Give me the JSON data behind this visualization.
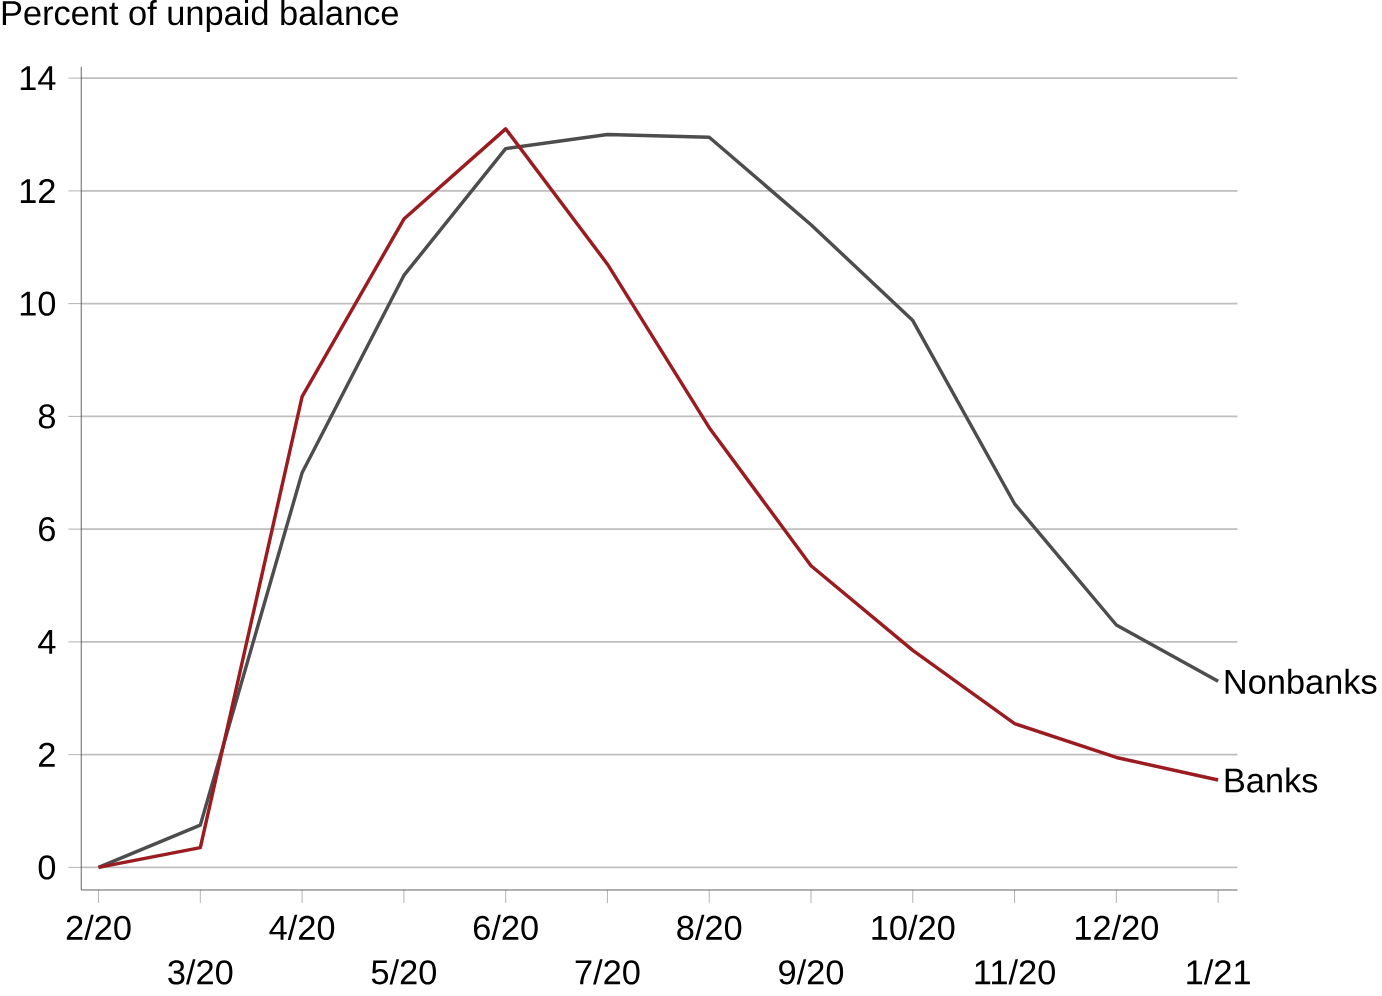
{
  "chart_data": {
    "type": "line",
    "ylabel": "Percent of unpaid balance",
    "categories": [
      "2/20",
      "3/20",
      "4/20",
      "5/20",
      "6/20",
      "7/20",
      "8/20",
      "9/20",
      "10/20",
      "11/20",
      "12/20",
      "1/21"
    ],
    "series": [
      {
        "name": "Nonbanks",
        "color": "#4d4d4f",
        "values": [
          0,
          0.75,
          7.0,
          10.5,
          12.75,
          13.0,
          12.95,
          11.4,
          9.7,
          6.45,
          4.3,
          3.3
        ]
      },
      {
        "name": "Banks",
        "color": "#9b1c20",
        "values": [
          0,
          0.35,
          8.35,
          11.5,
          13.1,
          10.7,
          7.8,
          5.35,
          3.85,
          2.55,
          1.95,
          1.55
        ]
      }
    ],
    "ylim": [
      -0.4,
      14.2
    ],
    "yticks": [
      0,
      2,
      4,
      6,
      8,
      10,
      12,
      14
    ],
    "grid": "y",
    "legend": false,
    "marker": "none",
    "line_style": "solid"
  }
}
